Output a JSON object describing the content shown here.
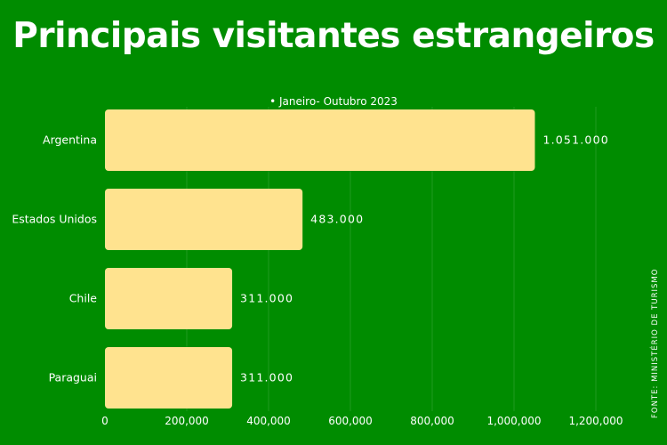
{
  "title": "Principais visitantes estrangeiros",
  "source": "FONTE: MINISTÉRIO DE TURISMO",
  "colors": {
    "background": "#008c00",
    "bar": "#ffe38f",
    "text": "#ffffff",
    "grid": "#1f9a1f"
  },
  "chart_data": {
    "type": "bar",
    "orientation": "horizontal",
    "title": "Principais visitantes estrangeiros",
    "legend": "• Janeiro- Outubro 2023",
    "categories": [
      "Argentina",
      "Estados Unidos",
      "Chile",
      "Paraguai"
    ],
    "values": [
      1051000,
      483000,
      311000,
      311000
    ],
    "value_labels": [
      "1.051.000",
      "483.000",
      "311.000",
      "311.000"
    ],
    "xlim": [
      0,
      1200000
    ],
    "x_ticks": [
      0,
      200000,
      400000,
      600000,
      800000,
      1000000,
      1200000
    ],
    "x_tick_labels": [
      "0",
      "200,000",
      "400,000",
      "600,000",
      "800,000",
      "1,000,000",
      "1,200,000"
    ],
    "grid": true
  }
}
